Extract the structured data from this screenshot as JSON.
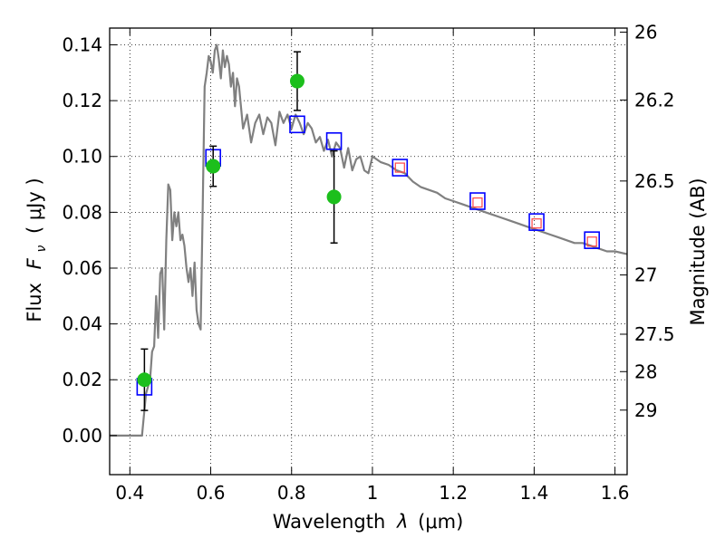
{
  "chart_data": {
    "type": "scatter",
    "xlabel_text": "Wavelength",
    "xlabel_symbol": "λ",
    "xlabel_unit": "(μm)",
    "ylabel_text": "Flux",
    "ylabel_symbol": "F",
    "ylabel_subscript": "ν",
    "ylabel_unit": "(  μJy  )",
    "y2label": "Magnitude (AB)",
    "xlim": [
      0.35,
      1.63
    ],
    "ylim": [
      -0.014,
      0.146
    ],
    "grid": true,
    "xticks": [
      {
        "v": 0.4,
        "label": "0.4"
      },
      {
        "v": 0.6,
        "label": "0.6"
      },
      {
        "v": 0.8,
        "label": "0.8"
      },
      {
        "v": 1.0,
        "label": "1"
      },
      {
        "v": 1.2,
        "label": "1.2"
      },
      {
        "v": 1.4,
        "label": "1.4"
      },
      {
        "v": 1.6,
        "label": "1.6"
      }
    ],
    "yticks": [
      {
        "v": 0.0,
        "label": "0.00"
      },
      {
        "v": 0.02,
        "label": "0.02"
      },
      {
        "v": 0.04,
        "label": "0.04"
      },
      {
        "v": 0.06,
        "label": "0.06"
      },
      {
        "v": 0.08,
        "label": "0.08"
      },
      {
        "v": 0.1,
        "label": "0.10"
      },
      {
        "v": 0.12,
        "label": "0.12"
      },
      {
        "v": 0.14,
        "label": "0.14"
      }
    ],
    "y2ticks": [
      {
        "label": "26",
        "mag": 26.0
      },
      {
        "label": "26.2",
        "mag": 26.2
      },
      {
        "label": "26.5",
        "mag": 26.5
      },
      {
        "label": "27",
        "mag": 27.0
      },
      {
        "label": "27.5",
        "mag": 27.5
      },
      {
        "label": "28",
        "mag": 28.0
      },
      {
        "label": "29",
        "mag": 29.0
      }
    ],
    "model_sed": {
      "color": "#808080",
      "x": [
        0.35,
        0.43,
        0.44,
        0.45,
        0.455,
        0.46,
        0.465,
        0.47,
        0.475,
        0.48,
        0.485,
        0.49,
        0.495,
        0.5,
        0.505,
        0.51,
        0.515,
        0.52,
        0.525,
        0.53,
        0.535,
        0.54,
        0.545,
        0.55,
        0.555,
        0.56,
        0.565,
        0.57,
        0.575,
        0.58,
        0.585,
        0.59,
        0.595,
        0.6,
        0.605,
        0.61,
        0.615,
        0.62,
        0.625,
        0.63,
        0.635,
        0.64,
        0.645,
        0.65,
        0.655,
        0.66,
        0.665,
        0.67,
        0.68,
        0.69,
        0.7,
        0.71,
        0.72,
        0.73,
        0.74,
        0.75,
        0.76,
        0.77,
        0.78,
        0.79,
        0.8,
        0.81,
        0.82,
        0.83,
        0.84,
        0.85,
        0.86,
        0.87,
        0.88,
        0.89,
        0.9,
        0.91,
        0.92,
        0.93,
        0.94,
        0.95,
        0.96,
        0.97,
        0.98,
        0.99,
        1.0,
        1.02,
        1.04,
        1.06,
        1.08,
        1.1,
        1.12,
        1.14,
        1.16,
        1.18,
        1.2,
        1.22,
        1.24,
        1.26,
        1.28,
        1.3,
        1.32,
        1.34,
        1.36,
        1.38,
        1.4,
        1.42,
        1.44,
        1.46,
        1.48,
        1.5,
        1.52,
        1.54,
        1.56,
        1.58,
        1.6,
        1.63
      ],
      "y": [
        0.0,
        0.0,
        0.015,
        0.02,
        0.03,
        0.032,
        0.05,
        0.035,
        0.058,
        0.06,
        0.038,
        0.07,
        0.09,
        0.088,
        0.07,
        0.08,
        0.075,
        0.08,
        0.07,
        0.072,
        0.068,
        0.06,
        0.055,
        0.06,
        0.05,
        0.062,
        0.045,
        0.04,
        0.038,
        0.08,
        0.125,
        0.13,
        0.136,
        0.134,
        0.13,
        0.138,
        0.14,
        0.135,
        0.128,
        0.138,
        0.132,
        0.136,
        0.133,
        0.125,
        0.13,
        0.118,
        0.128,
        0.125,
        0.11,
        0.115,
        0.105,
        0.112,
        0.115,
        0.108,
        0.114,
        0.112,
        0.104,
        0.116,
        0.112,
        0.115,
        0.11,
        0.115,
        0.112,
        0.108,
        0.112,
        0.11,
        0.105,
        0.107,
        0.102,
        0.106,
        0.1,
        0.105,
        0.103,
        0.096,
        0.103,
        0.095,
        0.099,
        0.1,
        0.095,
        0.094,
        0.1,
        0.098,
        0.097,
        0.095,
        0.094,
        0.091,
        0.089,
        0.088,
        0.087,
        0.085,
        0.084,
        0.083,
        0.082,
        0.081,
        0.08,
        0.079,
        0.078,
        0.077,
        0.076,
        0.075,
        0.074,
        0.073,
        0.072,
        0.071,
        0.07,
        0.069,
        0.069,
        0.068,
        0.067,
        0.066,
        0.066,
        0.065
      ]
    },
    "observed": {
      "color": "#1cbf1c",
      "points": [
        {
          "x": 0.436,
          "y": 0.02,
          "err": 0.011
        },
        {
          "x": 0.606,
          "y": 0.0965,
          "err": 0.0072
        },
        {
          "x": 0.814,
          "y": 0.127,
          "err": 0.0105
        },
        {
          "x": 0.905,
          "y": 0.0855,
          "err": 0.0165
        }
      ]
    },
    "synthetic": {
      "color": "#0000ff",
      "points": [
        {
          "x": 0.436,
          "y": 0.0175
        },
        {
          "x": 0.606,
          "y": 0.0995
        },
        {
          "x": 0.814,
          "y": 0.1115
        },
        {
          "x": 0.905,
          "y": 0.1055
        },
        {
          "x": 1.068,
          "y": 0.096
        },
        {
          "x": 1.26,
          "y": 0.084
        },
        {
          "x": 1.406,
          "y": 0.0765
        },
        {
          "x": 1.543,
          "y": 0.07
        }
      ]
    },
    "model_photometry": {
      "color": "#ff4444",
      "points": [
        {
          "x": 1.068,
          "y": 0.096
        },
        {
          "x": 1.26,
          "y": 0.0835
        },
        {
          "x": 1.406,
          "y": 0.076
        },
        {
          "x": 1.543,
          "y": 0.0695
        }
      ]
    }
  }
}
